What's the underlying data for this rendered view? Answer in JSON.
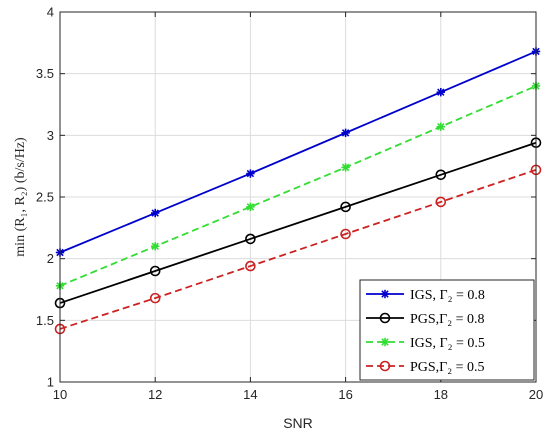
{
  "chart_data": {
    "type": "line",
    "xlabel": "SNR",
    "ylabel": "min (R₁, R₂) (b/s/Hz)",
    "xlim": [
      10,
      20
    ],
    "ylim": [
      1,
      4
    ],
    "xticks": [
      10,
      12,
      14,
      16,
      18,
      20
    ],
    "yticks": [
      1,
      1.5,
      2,
      2.5,
      3,
      3.5,
      4
    ],
    "xtick_labels": [
      "10",
      "12",
      "14",
      "16",
      "18",
      "20"
    ],
    "ytick_labels": [
      "1",
      "1.5",
      "2",
      "2.5",
      "3",
      "3.5",
      "4"
    ],
    "grid": true,
    "legend_position": "bottom-right",
    "x": [
      10,
      12,
      14,
      16,
      18,
      20
    ],
    "series": [
      {
        "name": "IGS, Γ₂ = 0.8",
        "values": [
          2.05,
          2.37,
          2.69,
          3.02,
          3.35,
          3.68
        ],
        "color": "#0000cc",
        "line": "solid",
        "marker": "star"
      },
      {
        "name": "PGS,Γ₂ = 0.8",
        "values": [
          1.64,
          1.9,
          2.16,
          2.42,
          2.68,
          2.94
        ],
        "color": "#000000",
        "line": "solid",
        "marker": "circle"
      },
      {
        "name": "IGS, Γ₂ = 0.5",
        "values": [
          1.78,
          2.1,
          2.42,
          2.74,
          3.07,
          3.4
        ],
        "color": "#33dd33",
        "line": "dashed",
        "marker": "star"
      },
      {
        "name": "PGS,Γ₂ = 0.5",
        "values": [
          1.43,
          1.68,
          1.94,
          2.2,
          2.46,
          2.72
        ],
        "color": "#cc2222",
        "line": "dashed",
        "marker": "circle"
      }
    ]
  }
}
